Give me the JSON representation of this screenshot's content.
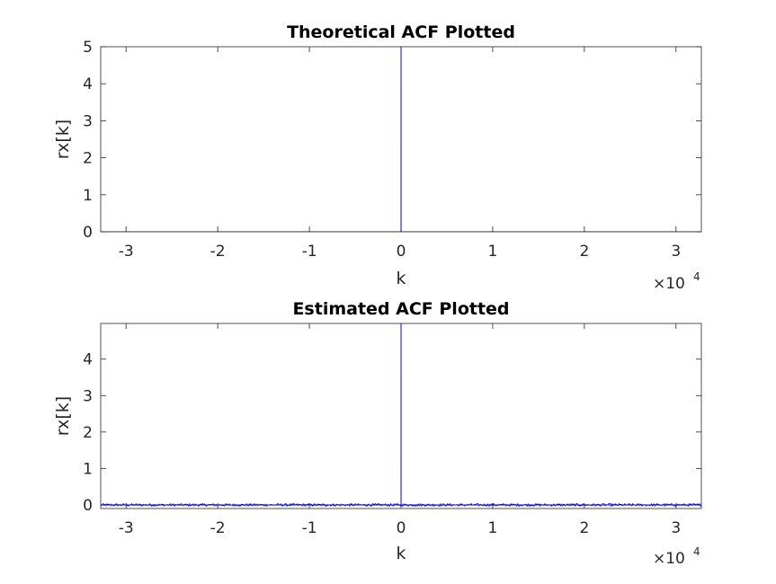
{
  "chart_data": [
    {
      "type": "line",
      "title": "Theoretical ACF Plotted",
      "xlabel": "k",
      "ylabel": "rx[k]",
      "xlim": [
        -32767,
        32767
      ],
      "ylim": [
        0,
        5
      ],
      "x_tick_values": [
        -3,
        -2,
        -1,
        0,
        1,
        2,
        3
      ],
      "x_tick_labels": [
        "-3",
        "-2",
        "-1",
        "0",
        "1",
        "2",
        "3"
      ],
      "y_tick_values": [
        0,
        1,
        2,
        3,
        4,
        5
      ],
      "y_tick_labels": [
        "0",
        "1",
        "2",
        "3",
        "4",
        "5"
      ],
      "x_exponent_base": "×10",
      "x_exponent_power": "4",
      "grid": false,
      "series": [
        {
          "color": "#0000ff",
          "x": [
            -32767,
            -1,
            0,
            1,
            32767
          ],
          "y": [
            0,
            0,
            5,
            0,
            0
          ]
        }
      ]
    },
    {
      "type": "line",
      "title": "Estimated ACF Plotted",
      "xlabel": "k",
      "ylabel": "rx[k]",
      "xlim": [
        -32767,
        32767
      ],
      "ylim": [
        -0.1,
        4.98
      ],
      "x_tick_values": [
        -3,
        -2,
        -1,
        0,
        1,
        2,
        3
      ],
      "x_tick_labels": [
        "-3",
        "-2",
        "-1",
        "0",
        "1",
        "2",
        "3"
      ],
      "y_tick_values": [
        0,
        1,
        2,
        3,
        4
      ],
      "y_tick_labels": [
        "0",
        "1",
        "2",
        "3",
        "4"
      ],
      "x_exponent_base": "×10",
      "x_exponent_power": "4",
      "grid": false,
      "series": [
        {
          "color": "#0000ff",
          "x": [
            -32767,
            -1,
            0,
            1,
            32767
          ],
          "y": [
            0,
            0,
            4.98,
            0,
            0
          ],
          "noise_amplitude": 0.06
        }
      ]
    }
  ]
}
